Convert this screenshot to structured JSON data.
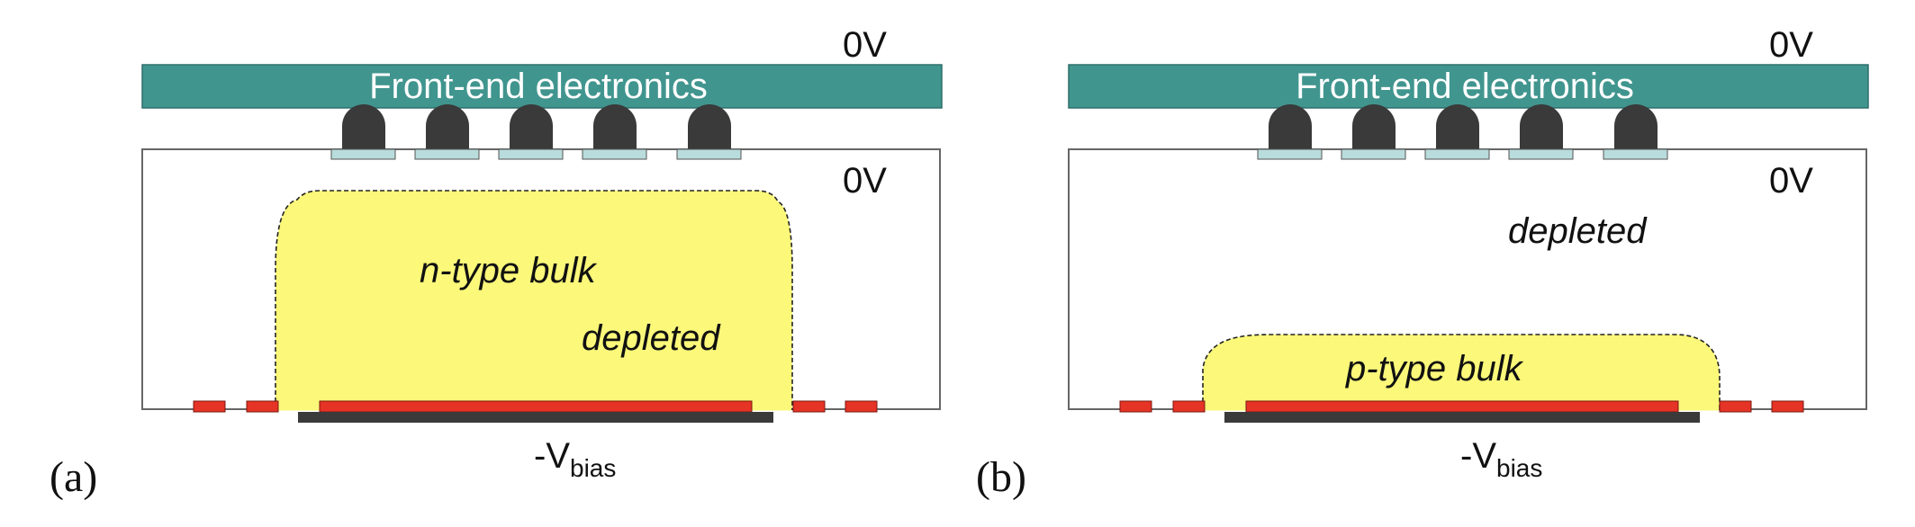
{
  "panels": [
    {
      "id": "a",
      "panel_label": "(a)",
      "electronics_label": "Front-end electronics",
      "top_voltage": "0V",
      "sensor_voltage": "0V",
      "bulk_label": "n-type bulk",
      "depleted_label": "depleted",
      "bias_prefix": "-V",
      "bias_subscript": "bias",
      "bump_count": 5
    },
    {
      "id": "b",
      "panel_label": "(b)",
      "electronics_label": "Front-end electronics",
      "top_voltage": "0V",
      "sensor_voltage": "0V",
      "bulk_label": "p-type bulk",
      "depleted_label": "depleted",
      "bias_prefix": "-V",
      "bias_subscript": "bias",
      "bump_count": 5
    }
  ],
  "colors": {
    "electronics": "#41958f",
    "electronics_text": "#ffffff",
    "bump": "#3a3a3a",
    "pad": "#b9dcdc",
    "depletion": "#fbf87a",
    "implant": "#e53326",
    "backplane": "#3a3a3a",
    "sensor_border": "#666666",
    "text": "#111111"
  }
}
